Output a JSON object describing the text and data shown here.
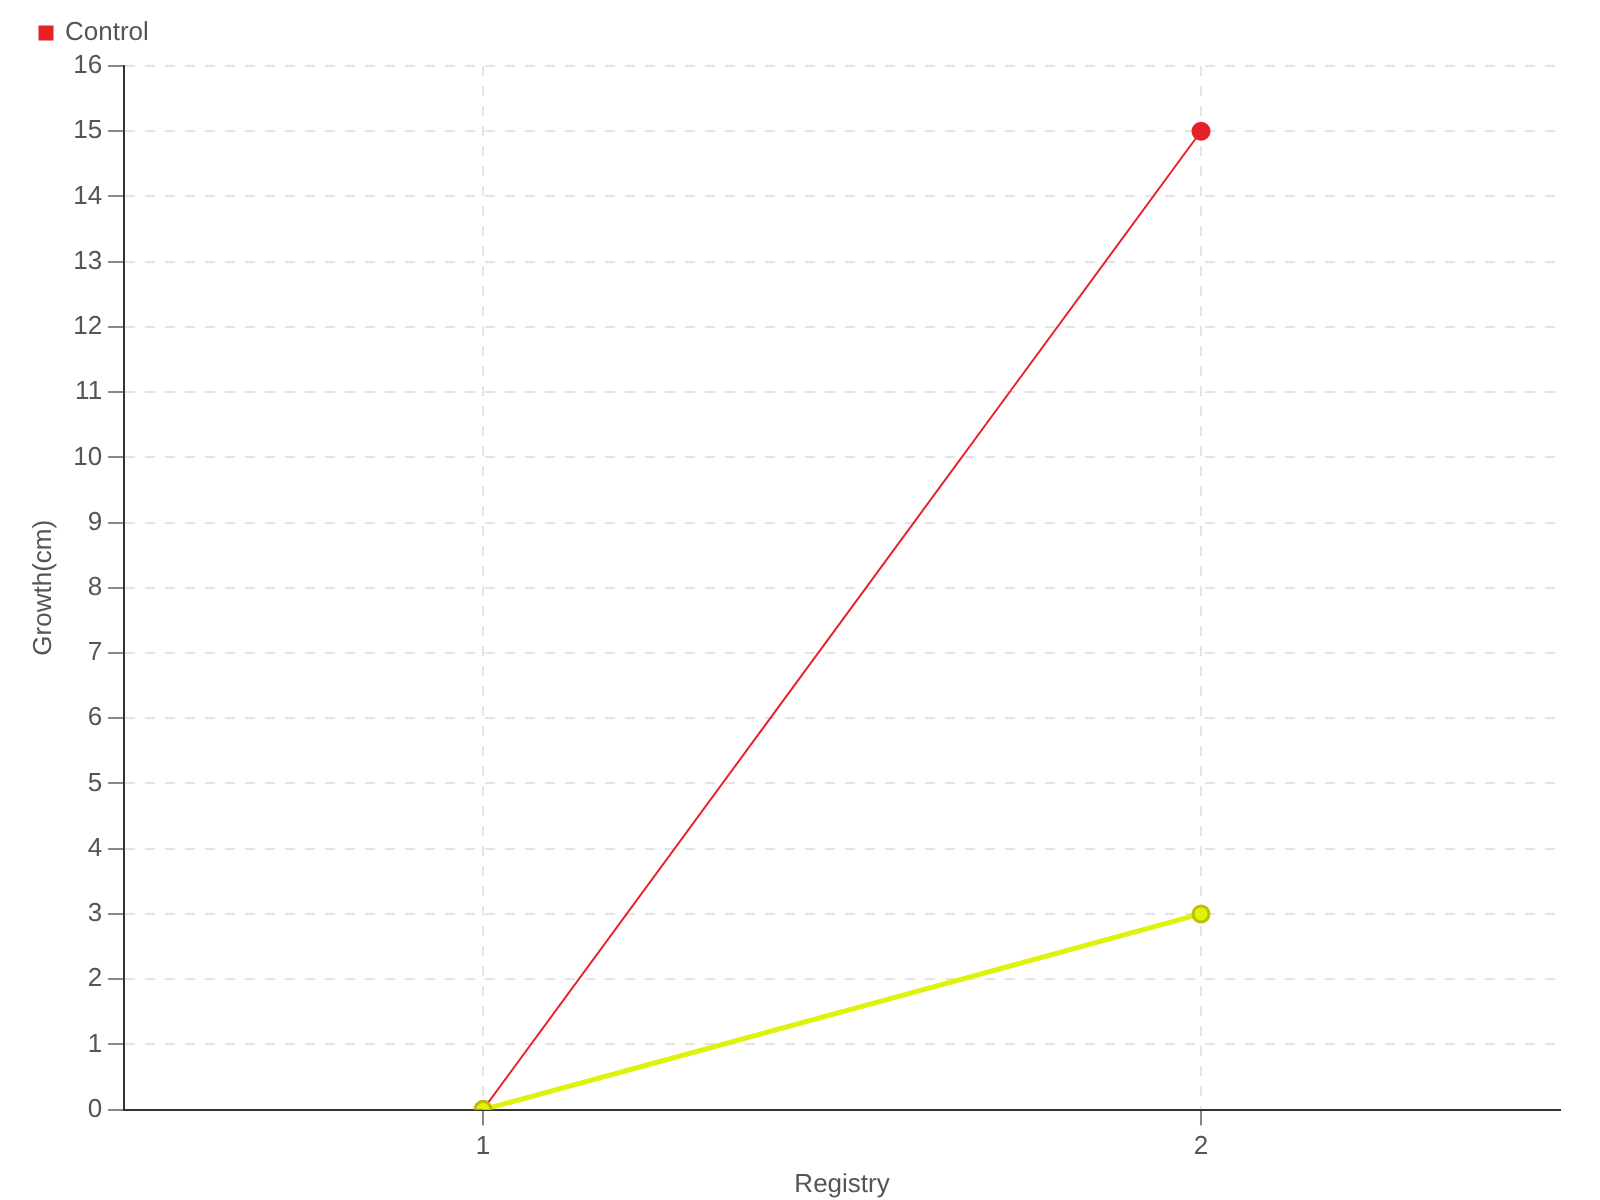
{
  "chart_data": {
    "type": "line",
    "xlabel": "Registry",
    "ylabel": "Growth(cm)",
    "x": [
      1,
      2
    ],
    "series": [
      {
        "color": "#e1f20a",
        "values": [
          0,
          3
        ]
      },
      {
        "name": "Control",
        "color": "#e8202a",
        "values": [
          0,
          15
        ]
      }
    ],
    "xlim": [
      0.5,
      2.5
    ],
    "xticks": [
      1,
      2
    ],
    "ylim": [
      0,
      16
    ],
    "yticks": [
      0,
      1,
      2,
      3,
      4,
      5,
      6,
      7,
      8,
      9,
      10,
      11,
      12,
      13,
      14,
      15,
      16
    ],
    "grid": true,
    "legend": "top left",
    "marker": "circle",
    "line_style": "solid"
  }
}
